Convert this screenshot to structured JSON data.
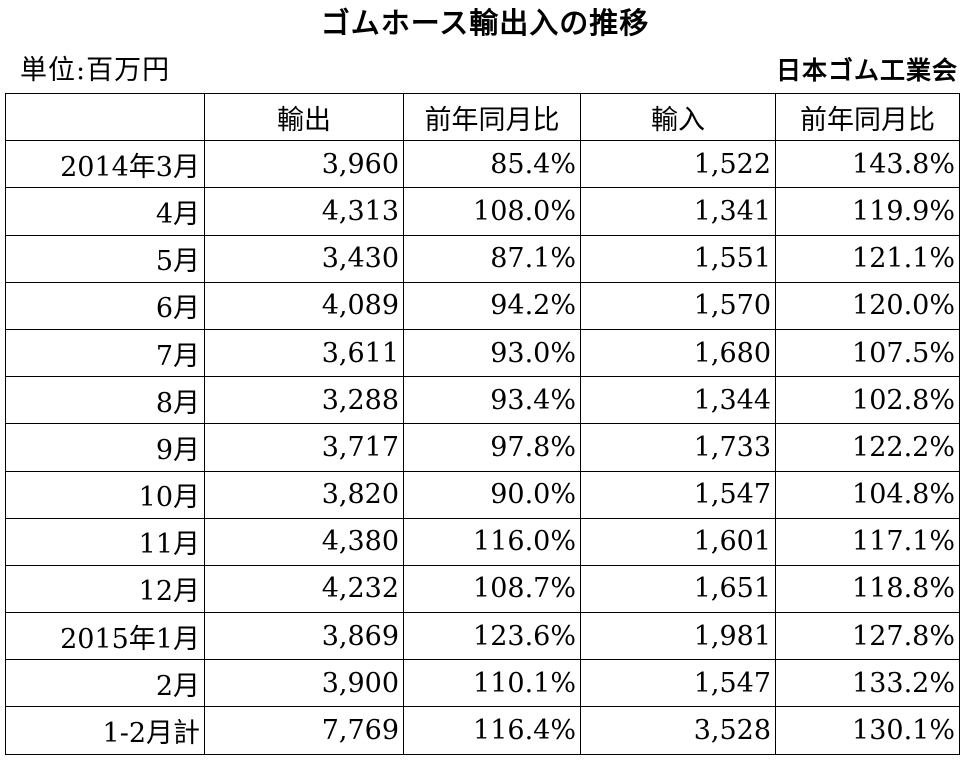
{
  "title": "ゴムホース輸出入の推移",
  "unit": "単位:百万円",
  "source": "日本ゴム工業会",
  "table": {
    "headers": [
      "",
      "輸出",
      "前年同月比",
      "輸入",
      "前年同月比"
    ],
    "rows": [
      [
        "2014年3月",
        "3,960",
        "85.4%",
        "1,522",
        "143.8%"
      ],
      [
        "4月",
        "4,313",
        "108.0%",
        "1,341",
        "119.9%"
      ],
      [
        "5月",
        "3,430",
        "87.1%",
        "1,551",
        "121.1%"
      ],
      [
        "6月",
        "4,089",
        "94.2%",
        "1,570",
        "120.0%"
      ],
      [
        "7月",
        "3,611",
        "93.0%",
        "1,680",
        "107.5%"
      ],
      [
        "8月",
        "3,288",
        "93.4%",
        "1,344",
        "102.8%"
      ],
      [
        "9月",
        "3,717",
        "97.8%",
        "1,733",
        "122.2%"
      ],
      [
        "10月",
        "3,820",
        "90.0%",
        "1,547",
        "104.8%"
      ],
      [
        "11月",
        "4,380",
        "116.0%",
        "1,601",
        "117.1%"
      ],
      [
        "12月",
        "4,232",
        "108.7%",
        "1,651",
        "118.8%"
      ],
      [
        "2015年1月",
        "3,869",
        "123.6%",
        "1,981",
        "127.8%"
      ],
      [
        "2月",
        "3,900",
        "110.1%",
        "1,547",
        "133.2%"
      ],
      [
        "1-2月計",
        "7,769",
        "116.4%",
        "3,528",
        "130.1%"
      ]
    ]
  }
}
